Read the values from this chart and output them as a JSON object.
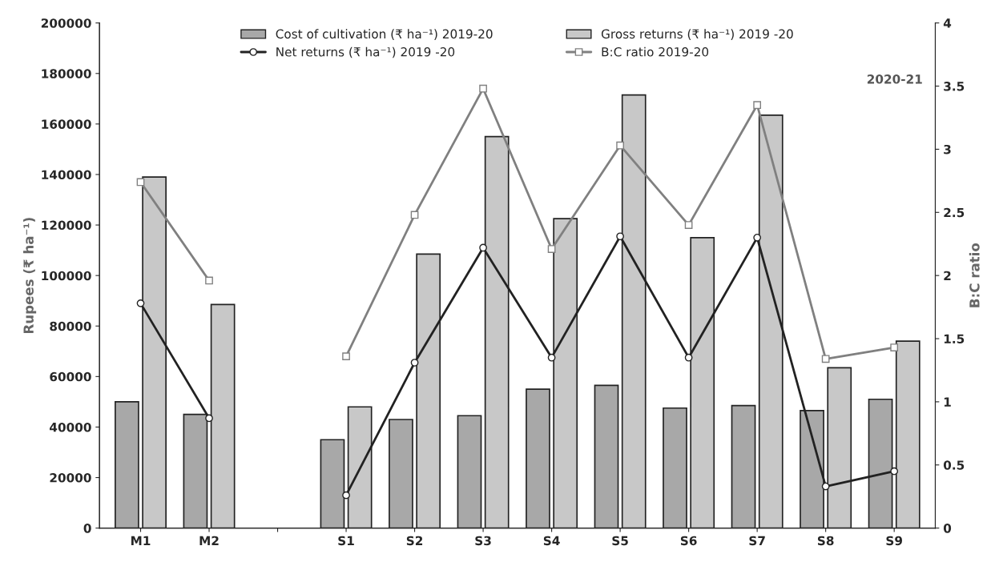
{
  "chart_data": {
    "type": "bar",
    "categories": [
      "M1",
      "M2",
      null,
      "S1",
      "S2",
      "S3",
      "S4",
      "S5",
      "S6",
      "S7",
      "S8",
      "S9"
    ],
    "series": [
      {
        "name": "Cost of cultivation (₹ ha⁻¹) 2019-20",
        "color": "#a8a8a8",
        "values": [
          50000,
          45000,
          null,
          35000,
          43000,
          44500,
          55000,
          56500,
          47500,
          48500,
          46500,
          51000
        ]
      },
      {
        "name": "Gross returns (₹ ha⁻¹) 2019 -20",
        "color": "#c8c8c8",
        "values": [
          139000,
          88500,
          null,
          48000,
          108500,
          155000,
          122500,
          171500,
          115000,
          163500,
          63500,
          74000
        ]
      },
      {
        "name": "Net returns (₹ ha⁻¹) 2019 -20",
        "type": "line",
        "color": "#222222",
        "marker": "circle",
        "values": [
          89000,
          43500,
          null,
          13000,
          65500,
          111000,
          67500,
          115500,
          67500,
          115000,
          16500,
          22500
        ]
      },
      {
        "name": "B:C ratio 2019-20",
        "type": "line",
        "color": "#808080",
        "marker": "square",
        "axis": "y2",
        "values": [
          2.74,
          1.96,
          null,
          1.36,
          2.48,
          3.48,
          2.21,
          3.03,
          2.4,
          3.35,
          1.34,
          1.43
        ]
      }
    ],
    "ylabel": "Rupees (₹ ha⁻¹)",
    "y2label": "B:C ratio",
    "ylim": [
      0,
      200000
    ],
    "yticks": [
      0,
      20000,
      40000,
      60000,
      80000,
      100000,
      120000,
      140000,
      160000,
      180000,
      200000
    ],
    "y2lim": [
      0,
      4
    ],
    "y2ticks": [
      0,
      0.5,
      1,
      1.5,
      2,
      2.5,
      3,
      3.5,
      4
    ],
    "annotations": [
      "2020-21"
    ],
    "grid": false,
    "legend": "top"
  }
}
